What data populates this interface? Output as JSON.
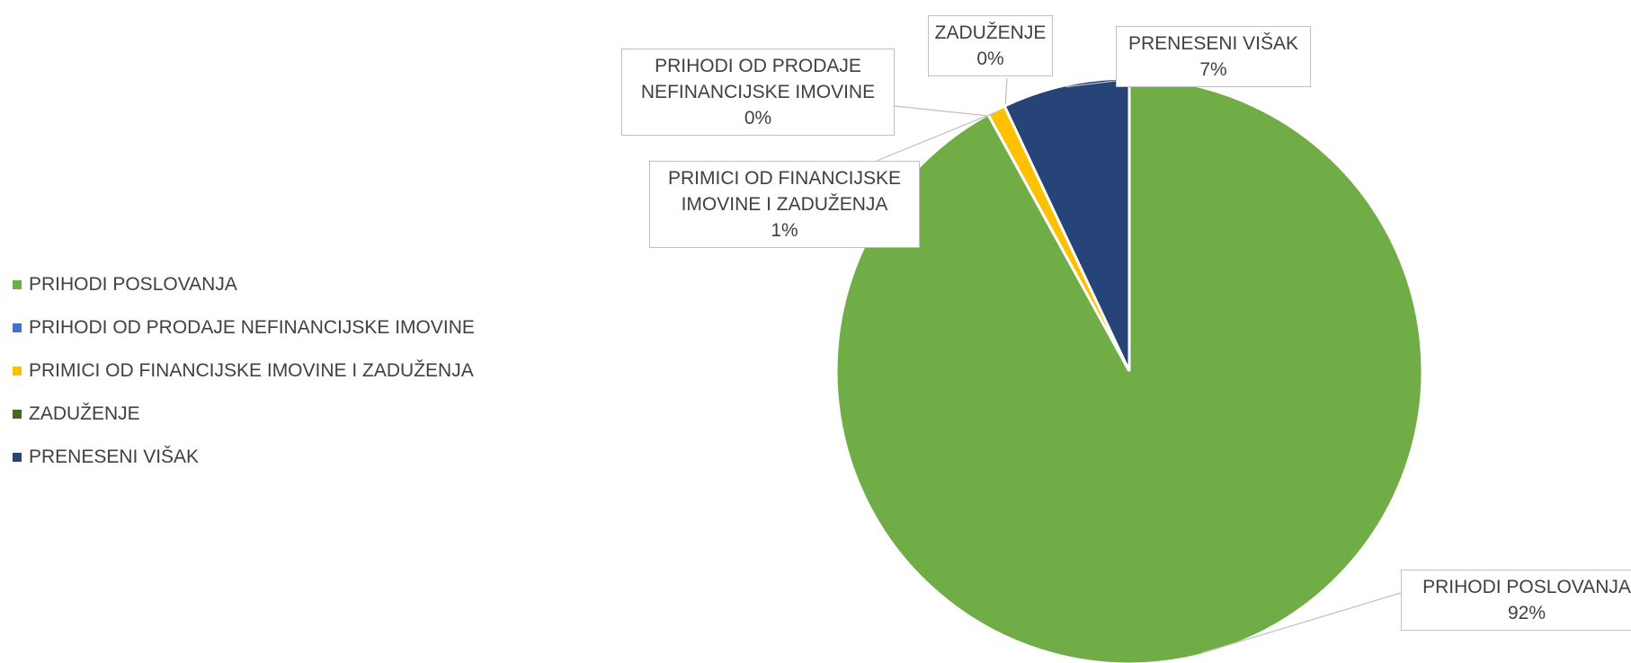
{
  "chart_data": {
    "type": "pie",
    "categories": [
      "PRIHODI POSLOVANJA",
      "PRIHODI OD PRODAJE NEFINANCIJSKE IMOVINE",
      "PRIMICI OD FINANCIJSKE IMOVINE I ZADUŽENJA",
      "ZADUŽENJE",
      "PRENESENI VIŠAK"
    ],
    "values": [
      92,
      0,
      1,
      0,
      7
    ],
    "value_labels": [
      "92%",
      "0%",
      "1%",
      "0%",
      "7%"
    ],
    "colors": [
      "#70ad47",
      "#4472c4",
      "#ffc000",
      "#43682b",
      "#264478"
    ],
    "legend": "left"
  }
}
